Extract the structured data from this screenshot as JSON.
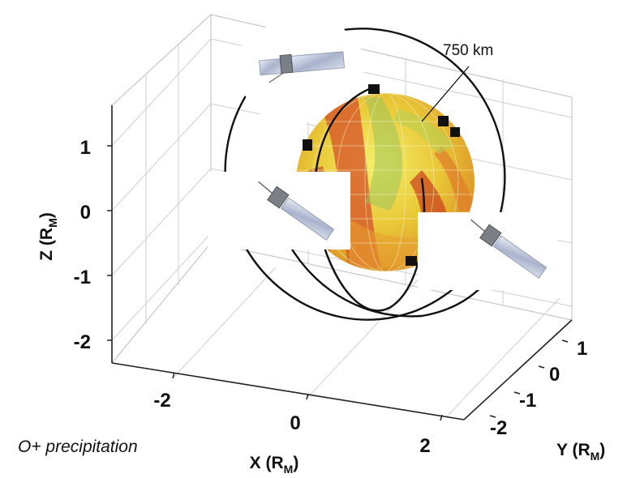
{
  "figure": {
    "annotation": "750 km",
    "caption": "O+ precipitation",
    "axes": {
      "x": {
        "label_main": "X (R",
        "label_sub": "M",
        "label_close": ")",
        "ticks": [
          "-2",
          "0",
          "2"
        ]
      },
      "y": {
        "label_main": "Y (R",
        "label_sub": "M",
        "label_close": ")",
        "ticks": [
          "1",
          "0",
          "-1",
          "-2"
        ]
      },
      "z": {
        "label_main": "Z (R",
        "label_sub": "M",
        "label_close": ")",
        "ticks": [
          "1",
          "0",
          "-1",
          "-2"
        ]
      }
    },
    "colors": {
      "globe_light": "#f2ec3c",
      "globe_mid": "#e7b92c",
      "globe_dark": "#c8331c",
      "globe_green": "#9cc25a",
      "orbit": "#111111",
      "grid": "#cfcfcf"
    },
    "icons": [
      "satellite-icon",
      "satellite-icon",
      "satellite-icon"
    ]
  }
}
